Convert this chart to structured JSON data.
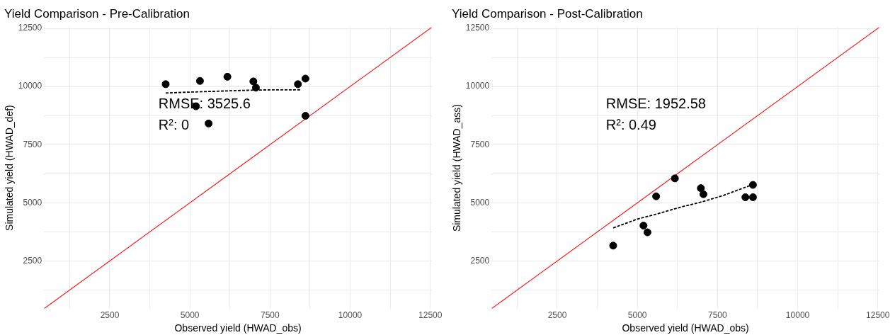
{
  "chart_data": [
    {
      "type": "scatter",
      "title": "Yield Comparison - Pre-Calibration",
      "xlabel": "Observed yield (HWAD_obs)",
      "ylabel": "Simulated yield (HWAD_def)",
      "xlim": [
        450,
        12550
      ],
      "ylim": [
        450,
        12550
      ],
      "xticks": [
        {
          "value": 1250,
          "label": null
        },
        2500,
        {
          "value": 3750,
          "label": null
        },
        5000,
        {
          "value": 6250,
          "label": null
        },
        7500,
        {
          "value": 8750,
          "label": null
        },
        10000,
        {
          "value": 11250,
          "label": null
        },
        12500
      ],
      "yticks": [
        {
          "value": 1250,
          "label": null
        },
        2500,
        {
          "value": 3750,
          "label": null
        },
        5000,
        {
          "value": 6250,
          "label": null
        },
        7500,
        {
          "value": 8750,
          "label": null
        },
        10000,
        {
          "value": 11250,
          "label": null
        },
        12500
      ],
      "grid": true,
      "legend": false,
      "annotations": [
        "RMSE: 3525.6",
        "R²: 0"
      ],
      "series": [
        {
          "type": "scatter",
          "marker": "circle",
          "color": "#000000",
          "x": [
            4245,
            5190,
            5315,
            5585,
            6170,
            6980,
            7060,
            8370,
            8605,
            8605
          ],
          "values": [
            10100,
            9150,
            10240,
            8410,
            10420,
            10220,
            9950,
            10100,
            10340,
            8740
          ]
        },
        {
          "type": "line",
          "color": "#000000",
          "line_style": "dashed",
          "x": [
            4245,
            5000,
            6340,
            7060,
            8450
          ],
          "values": [
            9720,
            9760,
            9820,
            9850,
            9860
          ]
        },
        {
          "type": "line",
          "color": "#ff0000",
          "line_style": "solid",
          "x": [
            450,
            12550
          ],
          "values": [
            450,
            12550
          ]
        }
      ]
    },
    {
      "type": "scatter",
      "title": "Yield Comparison - Post-Calibration",
      "xlabel": "Observed yield (HWAD_obs)",
      "ylabel": "Simulated yield (HWAD_ass)",
      "xlim": [
        450,
        12550
      ],
      "ylim": [
        450,
        12550
      ],
      "xticks": [
        {
          "value": 1250,
          "label": null
        },
        2500,
        {
          "value": 3750,
          "label": null
        },
        5000,
        {
          "value": 6250,
          "label": null
        },
        7500,
        {
          "value": 8750,
          "label": null
        },
        10000,
        {
          "value": 11250,
          "label": null
        },
        12500
      ],
      "yticks": [
        {
          "value": 1250,
          "label": null
        },
        2500,
        {
          "value": 3750,
          "label": null
        },
        5000,
        {
          "value": 6250,
          "label": null
        },
        7500,
        {
          "value": 8750,
          "label": null
        },
        10000,
        {
          "value": 11250,
          "label": null
        },
        12500
      ],
      "grid": true,
      "legend": false,
      "annotations": [
        "RMSE: 1952.58",
        "R²: 0.49"
      ],
      "series": [
        {
          "type": "scatter",
          "marker": "circle",
          "color": "#000000",
          "x": [
            4245,
            5190,
            5315,
            5585,
            6170,
            6980,
            7060,
            8370,
            8605,
            8605
          ],
          "values": [
            3160,
            4020,
            3730,
            5280,
            6050,
            5630,
            5370,
            5240,
            5770,
            5240
          ]
        },
        {
          "type": "line",
          "color": "#000000",
          "line_style": "dashed",
          "x": [
            4245,
            5000,
            5530,
            6340,
            7060,
            7690,
            8605
          ],
          "values": [
            3920,
            4300,
            4490,
            4810,
            5060,
            5320,
            5790
          ]
        },
        {
          "type": "line",
          "color": "#ff0000",
          "line_style": "solid",
          "x": [
            450,
            12550
          ],
          "values": [
            450,
            12550
          ]
        }
      ]
    }
  ]
}
